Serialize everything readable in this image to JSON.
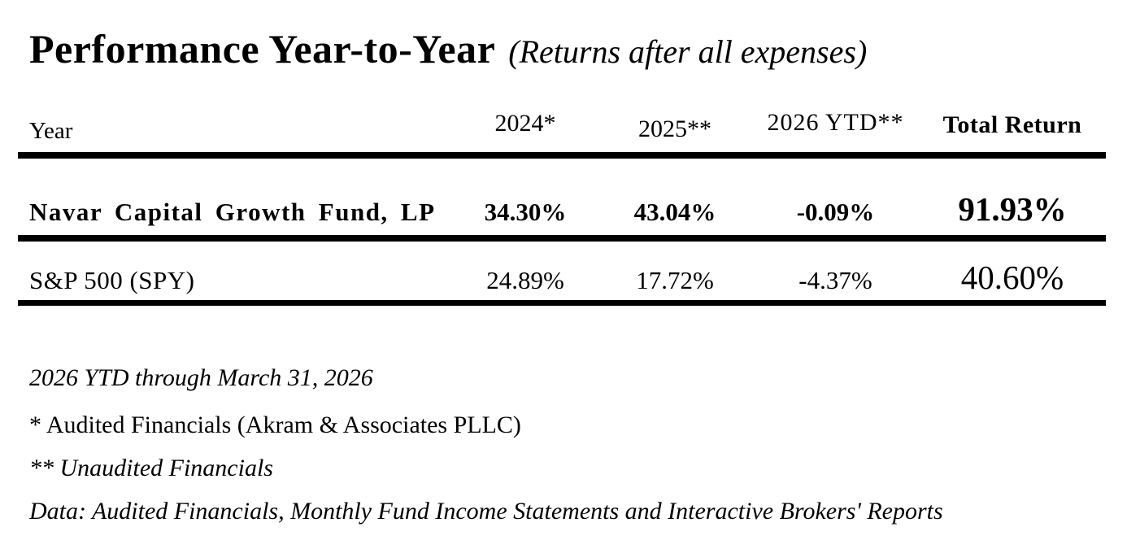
{
  "title": {
    "main": "Performance Year-to-Year",
    "subtitle": "(Returns after all expenses)"
  },
  "table": {
    "columns": [
      "Year",
      "2024*",
      "2025**",
      "2026 YTD**",
      "Total Return"
    ],
    "rows": [
      {
        "name": "Navar Capital Growth Fund, LP",
        "values": [
          "34.30%",
          "43.04%",
          "-0.09%",
          "91.93%"
        ],
        "emphasis": "bold"
      },
      {
        "name": "S&P 500 (SPY)",
        "values": [
          "24.89%",
          "17.72%",
          "-4.37%",
          "40.60%"
        ],
        "emphasis": "regular"
      }
    ]
  },
  "notes": [
    {
      "text": "2026 YTD through March 31, 2026",
      "style": "italic"
    },
    {
      "text": "* Audited Financials (Akram & Associates PLLC)",
      "style": "normal"
    },
    {
      "text": "** Unaudited Financials",
      "style": "italic"
    },
    {
      "text": "Data: Audited Financials, Monthly Fund Income Statements and Interactive Brokers' Reports",
      "style": "italic"
    }
  ],
  "colors": {
    "text": "#000000",
    "background": "#ffffff",
    "rule": "#000000"
  },
  "chart_data": {
    "type": "table",
    "title": "Performance Year-to-Year (Returns after all expenses)",
    "categories": [
      "2024",
      "2025",
      "2026 YTD",
      "Total Return"
    ],
    "series": [
      {
        "name": "Navar Capital Growth Fund, LP",
        "values": [
          34.3,
          43.04,
          -0.09,
          91.93
        ]
      },
      {
        "name": "S&P 500 (SPY)",
        "values": [
          24.89,
          17.72,
          -4.37,
          40.6
        ]
      }
    ],
    "unit": "%"
  }
}
